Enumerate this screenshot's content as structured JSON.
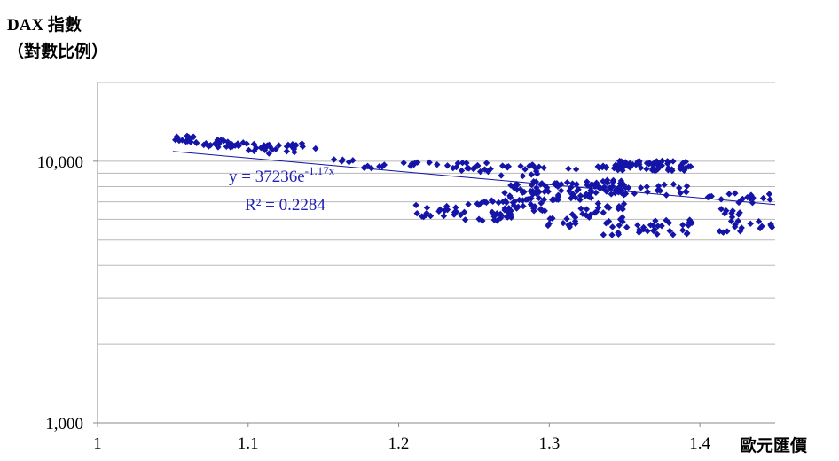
{
  "chart_data": {
    "type": "scatter",
    "ylabel_line1": "DAX 指數",
    "ylabel_line2": "（對數比例）",
    "xlabel": "歐元匯價",
    "xlim": [
      1,
      1.45
    ],
    "ylim": [
      1000,
      20000
    ],
    "y_scale": "log",
    "x_ticks": [
      "1",
      "1.1",
      "1.2",
      "1.3",
      "1.4"
    ],
    "y_ticks": [
      "1,000",
      "10,000"
    ],
    "grid": "horizontal minor gridlines",
    "marker_color": "#1414a8",
    "trendline": {
      "type": "exponential",
      "a": 37236,
      "b": -1.17,
      "x_range": [
        1.05,
        1.45
      ],
      "equation_prefix": "y = 37236e",
      "equation_exponent": "-1.17x",
      "r_squared_label": "R² = 0.2284",
      "color": "#1414a8"
    },
    "clusters": [
      {
        "x": [
          1.05,
          1.065
        ],
        "y": [
          11700,
          12500
        ],
        "n": 15
      },
      {
        "x": [
          1.065,
          1.1
        ],
        "y": [
          11300,
          12100
        ],
        "n": 30
      },
      {
        "x": [
          1.1,
          1.145
        ],
        "y": [
          10700,
          11700
        ],
        "n": 28
      },
      {
        "x": [
          1.155,
          1.17
        ],
        "y": [
          9800,
          10200
        ],
        "n": 5
      },
      {
        "x": [
          1.175,
          1.195
        ],
        "y": [
          9400,
          9800
        ],
        "n": 7
      },
      {
        "x": [
          1.2,
          1.235
        ],
        "y": [
          9500,
          9900
        ],
        "n": 9
      },
      {
        "x": [
          1.235,
          1.26
        ],
        "y": [
          9100,
          9900
        ],
        "n": 18
      },
      {
        "x": [
          1.26,
          1.3
        ],
        "y": [
          8700,
          9700
        ],
        "n": 18
      },
      {
        "x": [
          1.21,
          1.245
        ],
        "y": [
          6100,
          6800
        ],
        "n": 18
      },
      {
        "x": [
          1.245,
          1.27
        ],
        "y": [
          6800,
          7100
        ],
        "n": 10
      },
      {
        "x": [
          1.24,
          1.275
        ],
        "y": [
          5900,
          6400
        ],
        "n": 18
      },
      {
        "x": [
          1.27,
          1.3
        ],
        "y": [
          6400,
          7200
        ],
        "n": 25
      },
      {
        "x": [
          1.27,
          1.33
        ],
        "y": [
          7100,
          8400
        ],
        "n": 70
      },
      {
        "x": [
          1.295,
          1.32
        ],
        "y": [
          5600,
          6100
        ],
        "n": 12
      },
      {
        "x": [
          1.315,
          1.35
        ],
        "y": [
          6000,
          6900
        ],
        "n": 22
      },
      {
        "x": [
          1.325,
          1.35
        ],
        "y": [
          7500,
          8500
        ],
        "n": 30
      },
      {
        "x": [
          1.31,
          1.345
        ],
        "y": [
          9300,
          9800
        ],
        "n": 10
      },
      {
        "x": [
          1.345,
          1.395
        ],
        "y": [
          9200,
          10100
        ],
        "n": 70
      },
      {
        "x": [
          1.34,
          1.395
        ],
        "y": [
          7400,
          8200
        ],
        "n": 22
      },
      {
        "x": [
          1.335,
          1.395
        ],
        "y": [
          5200,
          6000
        ],
        "n": 40
      },
      {
        "x": [
          1.4,
          1.425
        ],
        "y": [
          5200,
          5500
        ],
        "n": 3
      },
      {
        "x": [
          1.405,
          1.45
        ],
        "y": [
          6900,
          7600
        ],
        "n": 18
      },
      {
        "x": [
          1.41,
          1.43
        ],
        "y": [
          6000,
          6600
        ],
        "n": 8
      },
      {
        "x": [
          1.42,
          1.45
        ],
        "y": [
          5400,
          6000
        ],
        "n": 14
      }
    ]
  }
}
